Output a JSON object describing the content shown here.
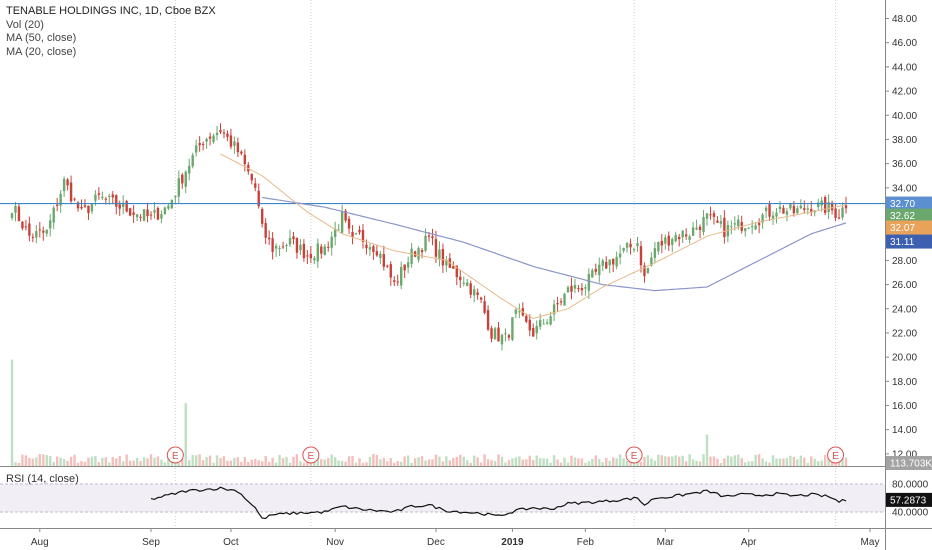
{
  "legend": {
    "title": "TENABLE HOLDINGS INC, 1D, Cboe BZX",
    "vol": "Vol (20)",
    "ma50": "MA (50, close)",
    "ma20": "MA (20, close)"
  },
  "rsi_panel": {
    "label": "RSI (14, close)",
    "value_label": "57.2873",
    "upper_label": "80.0000",
    "lower_label": "40.0000"
  },
  "colors": {
    "up": "#6aa86e",
    "down": "#c9423a",
    "ma50": "#8b95c9",
    "ma20": "#e8b98a",
    "hline": "#3d85c6",
    "rsi_band": "#f2eef5",
    "earnings": "#d9534f"
  },
  "chart_data": {
    "type": "candlestick",
    "y_axis": {
      "ticks": [
        "12.00",
        "14.00",
        "16.00",
        "18.00",
        "20.00",
        "22.00",
        "24.00",
        "26.00",
        "28.00",
        "30.00",
        "32.00",
        "34.00",
        "36.00",
        "38.00",
        "40.00",
        "42.00",
        "44.00",
        "46.00",
        "48.00"
      ],
      "range": [
        11,
        49.2
      ]
    },
    "x_axis": {
      "labels": [
        "Aug",
        "Sep",
        "Oct",
        "Nov",
        "Dec",
        "2019",
        "Feb",
        "Mar",
        "Apr",
        "May"
      ]
    },
    "price_labels": {
      "close": "32.70",
      "ma20": "32.62",
      "low_last": "32.07",
      "ma50": "31.11",
      "volume": "113.703K"
    },
    "horizontal_line": 32.7,
    "earnings_markers": [
      "E",
      "E",
      "E",
      "E"
    ],
    "ohlc_anchors": [
      [
        0,
        32.5
      ],
      [
        5,
        30.0
      ],
      [
        10,
        30.3
      ],
      [
        15,
        34.5
      ],
      [
        20,
        31.8
      ],
      [
        25,
        33.2
      ],
      [
        30,
        32.6
      ],
      [
        35,
        32.0
      ],
      [
        40,
        31.5
      ],
      [
        45,
        32.5
      ],
      [
        50,
        35.5
      ],
      [
        55,
        38.0
      ],
      [
        60,
        38.8
      ],
      [
        65,
        37.0
      ],
      [
        70,
        34.0
      ],
      [
        72,
        30.5
      ],
      [
        75,
        29.0
      ],
      [
        80,
        29.5
      ],
      [
        85,
        28.5
      ],
      [
        90,
        29.0
      ],
      [
        95,
        31.5
      ],
      [
        98,
        29.5
      ],
      [
        100,
        30.0
      ],
      [
        105,
        29.0
      ],
      [
        110,
        26.0
      ],
      [
        115,
        28.5
      ],
      [
        120,
        29.8
      ],
      [
        125,
        27.5
      ],
      [
        130,
        26.5
      ],
      [
        135,
        24.5
      ],
      [
        138,
        22.0
      ],
      [
        142,
        21.5
      ],
      [
        145,
        23.5
      ],
      [
        150,
        22.0
      ],
      [
        155,
        23.5
      ],
      [
        160,
        25.5
      ],
      [
        165,
        26.0
      ],
      [
        170,
        27.5
      ],
      [
        175,
        28.5
      ],
      [
        180,
        29.5
      ],
      [
        182,
        26.5
      ],
      [
        185,
        29.0
      ],
      [
        190,
        30.0
      ],
      [
        195,
        30.3
      ],
      [
        200,
        31.5
      ],
      [
        205,
        30.5
      ],
      [
        210,
        31.0
      ],
      [
        215,
        31.5
      ],
      [
        220,
        32.3
      ],
      [
        225,
        32.0
      ],
      [
        230,
        32.5
      ],
      [
        235,
        32.3
      ],
      [
        238,
        31.8
      ],
      [
        240,
        32.7
      ]
    ],
    "ma50_anchors": [
      [
        72,
        33.2
      ],
      [
        90,
        32.4
      ],
      [
        110,
        31.0
      ],
      [
        130,
        29.5
      ],
      [
        150,
        27.5
      ],
      [
        170,
        26.0
      ],
      [
        185,
        25.5
      ],
      [
        200,
        25.8
      ],
      [
        215,
        28.0
      ],
      [
        230,
        30.2
      ],
      [
        240,
        31.1
      ]
    ],
    "ma20_anchors": [
      [
        60,
        36.8
      ],
      [
        72,
        35.0
      ],
      [
        85,
        32.0
      ],
      [
        95,
        30.2
      ],
      [
        110,
        28.8
      ],
      [
        125,
        28.0
      ],
      [
        140,
        25.0
      ],
      [
        150,
        23.2
      ],
      [
        160,
        24.0
      ],
      [
        170,
        25.8
      ],
      [
        185,
        27.8
      ],
      [
        200,
        30.0
      ],
      [
        215,
        31.2
      ],
      [
        230,
        32.0
      ],
      [
        240,
        32.6
      ]
    ],
    "rsi_anchors": [
      [
        0,
        66
      ],
      [
        10,
        66
      ],
      [
        15,
        70
      ],
      [
        20,
        65
      ],
      [
        30,
        60
      ],
      [
        40,
        58
      ],
      [
        45,
        64
      ],
      [
        50,
        70
      ],
      [
        55,
        72
      ],
      [
        60,
        74
      ],
      [
        65,
        70
      ],
      [
        70,
        46
      ],
      [
        72,
        30
      ],
      [
        75,
        36
      ],
      [
        80,
        38
      ],
      [
        90,
        40
      ],
      [
        95,
        48
      ],
      [
        100,
        44
      ],
      [
        110,
        40
      ],
      [
        115,
        48
      ],
      [
        120,
        50
      ],
      [
        125,
        42
      ],
      [
        130,
        40
      ],
      [
        135,
        38
      ],
      [
        140,
        34
      ],
      [
        145,
        42
      ],
      [
        150,
        46
      ],
      [
        155,
        44
      ],
      [
        160,
        52
      ],
      [
        170,
        55
      ],
      [
        180,
        60
      ],
      [
        182,
        50
      ],
      [
        185,
        60
      ],
      [
        190,
        62
      ],
      [
        200,
        70
      ],
      [
        205,
        62
      ],
      [
        210,
        65
      ],
      [
        215,
        64
      ],
      [
        220,
        66
      ],
      [
        225,
        63
      ],
      [
        230,
        65
      ],
      [
        235,
        62
      ],
      [
        238,
        55
      ],
      [
        240,
        57
      ]
    ],
    "volume_spikes": [
      [
        0,
        19.8
      ],
      [
        50,
        16.2
      ],
      [
        200,
        13.6
      ]
    ]
  }
}
